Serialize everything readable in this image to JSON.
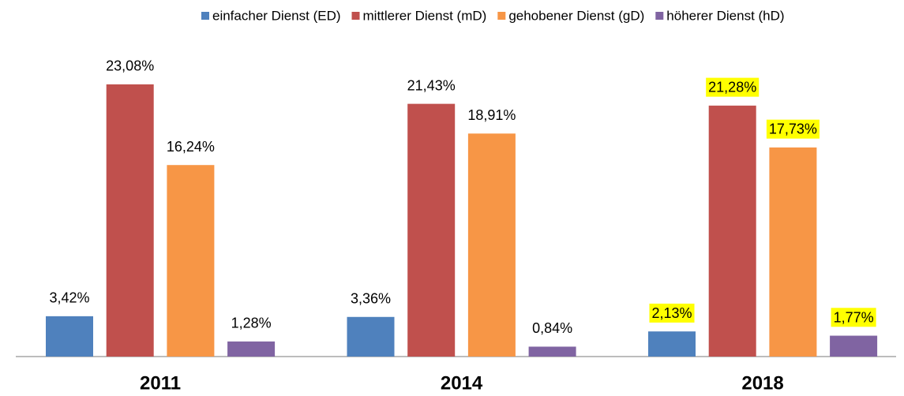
{
  "chart_data": {
    "type": "bar",
    "categories": [
      "2011",
      "2014",
      "2018"
    ],
    "series": [
      {
        "name": "einfacher Dienst (ED)",
        "color": "#4f81bd",
        "values": [
          3.42,
          3.36,
          2.13
        ],
        "value_labels": [
          "3,42%",
          "3,36%",
          "2,13%"
        ]
      },
      {
        "name": "mittlerer Dienst (mD)",
        "color": "#c0504d",
        "values": [
          23.08,
          21.43,
          21.28
        ],
        "value_labels": [
          "23,08%",
          "21,43%",
          "21,28%"
        ]
      },
      {
        "name": "gehobener Dienst (gD)",
        "color": "#f79646",
        "values": [
          16.24,
          18.91,
          17.73
        ],
        "value_labels": [
          "16,24%",
          "18,91%",
          "17,73%"
        ]
      },
      {
        "name": "höherer Dienst (hD)",
        "color": "#8064a2",
        "values": [
          1.28,
          0.84,
          1.77
        ],
        "value_labels": [
          "1,28%",
          "0,84%",
          "1,77%"
        ]
      }
    ],
    "legend": "top",
    "highlight": {
      "category": "2018",
      "color": "#ffff00"
    }
  }
}
